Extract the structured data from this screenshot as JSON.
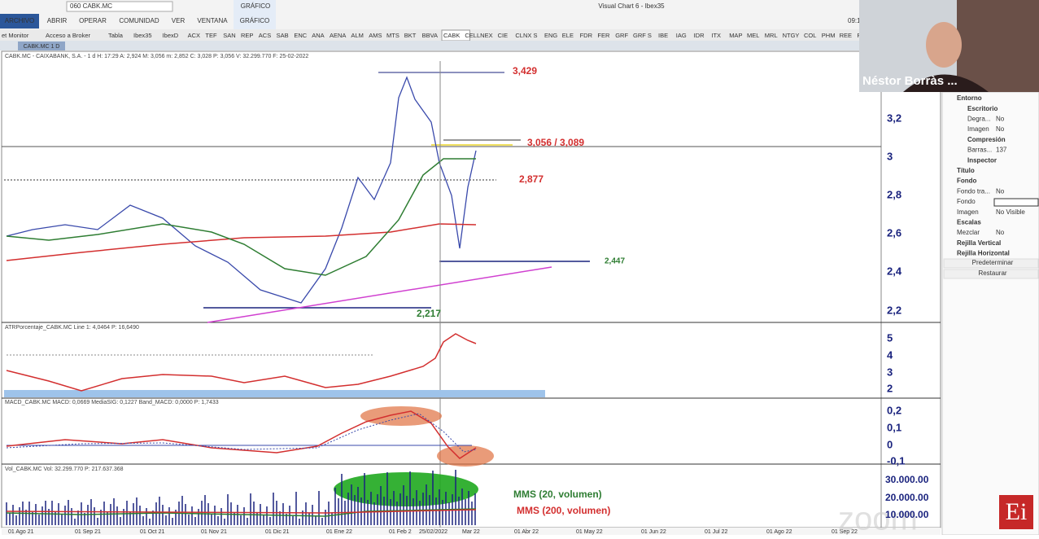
{
  "window": {
    "title": "Visual Chart 6 - Ibex35",
    "clock": "09:1",
    "ribbon_group": "GRÁFICO"
  },
  "menu": [
    "ARCHIVO",
    "ABRIR",
    "OPERAR",
    "COMUNIDAD",
    "VER",
    "VENTANA",
    "GRÁFICO"
  ],
  "symbol_box": "060 CABK.MC",
  "tabs": [
    "et Monitor",
    "Acceso a Broker",
    "Tabla",
    "Ibex35",
    "IbexD",
    "ACX",
    "TEF",
    "SAN",
    "REP",
    "ACS",
    "SAB",
    "ENC",
    "ANA",
    "AENA",
    "ALM",
    "AMS",
    "MTS",
    "BKT",
    "BBVA",
    "CABK",
    "CELLNEX",
    "CIE",
    "CLNX S",
    "ENG",
    "ELE",
    "FDR",
    "FER",
    "GRF",
    "GRF S",
    "IBE",
    "IAG",
    "IDR",
    "ITX",
    "MAP",
    "MEL",
    "MRL",
    "NTGY",
    "COL",
    "PHM",
    "REE",
    "ROVI",
    "SG"
  ],
  "chart_tab": "CABK.MC 1 D",
  "price_panel": {
    "header": "CABK.MC - CAIXABANK, S.A. - 1 d H: 17:29 A: 2,924 M: 3,056 m: 2,852 C: 3,028 P: 3,056 V: 32.299.770 F: 25-02-2022",
    "ticks": [
      "3,2",
      "3",
      "2,8",
      "2,6",
      "2,4",
      "2,2"
    ],
    "annotations": [
      "3,429",
      "3,056 / 3,089",
      "2,877",
      "2,447",
      "2,217"
    ]
  },
  "atr_panel": {
    "header": "ATRPorcentaje_CABK.MC Line 1: 4,0464 P: 16,6490",
    "ticks": [
      "5",
      "4",
      "3",
      "2"
    ]
  },
  "macd_panel": {
    "header": "MACD_CABK.MC MACD: 0,0669 MediaSIG: 0,1227 Band_MACD: 0,0000 P: 1,7433",
    "ticks": [
      "0,2",
      "0,1",
      "0",
      "-0,1"
    ]
  },
  "volume_panel": {
    "header": "Vol_CABK.MC Vol: 32.299.770 P: 217.637.368",
    "ticks": [
      "30.000.00",
      "20.000.00",
      "10.000.00"
    ],
    "annotations": [
      "MMS (20, volumen)",
      "MMS (200, volumen)"
    ]
  },
  "date_axis": [
    "01 Ago 21",
    "01 Sep 21",
    "01 Oct 21",
    "01 Nov 21",
    "01 Dic 21",
    "01 Ene 22",
    "01 Feb 2",
    "25/02/2022",
    "Mar 22",
    "01 Abr 22",
    "01 May 22",
    "01 Jun 22",
    "01 Jul 22",
    "01 Ago 22",
    "01 Sep 22"
  ],
  "properties": [
    [
      "Entorno",
      ""
    ],
    [
      "Escritorio",
      ""
    ],
    [
      "Degra...",
      "No"
    ],
    [
      "Imagen",
      "No"
    ],
    [
      "Compresión",
      ""
    ],
    [
      "Barras...",
      "137"
    ],
    [
      "Inspector",
      ""
    ],
    [
      "Título",
      ""
    ],
    [
      "Fondo",
      ""
    ],
    [
      "Fondo tra...",
      "No"
    ],
    [
      "Fondo",
      ""
    ],
    [
      "Imagen",
      "No Visible"
    ],
    [
      "Escalas",
      ""
    ],
    [
      "Mezclar",
      "No"
    ],
    [
      "Rejilla Vertical",
      ""
    ],
    [
      "Rejilla Horizontal",
      ""
    ]
  ],
  "buttons": [
    "Predeterminar",
    "Restaurar"
  ],
  "webcam": {
    "name": "Néstor Borràs ...",
    "logo": "Ei",
    "watermark": "zoom"
  }
}
